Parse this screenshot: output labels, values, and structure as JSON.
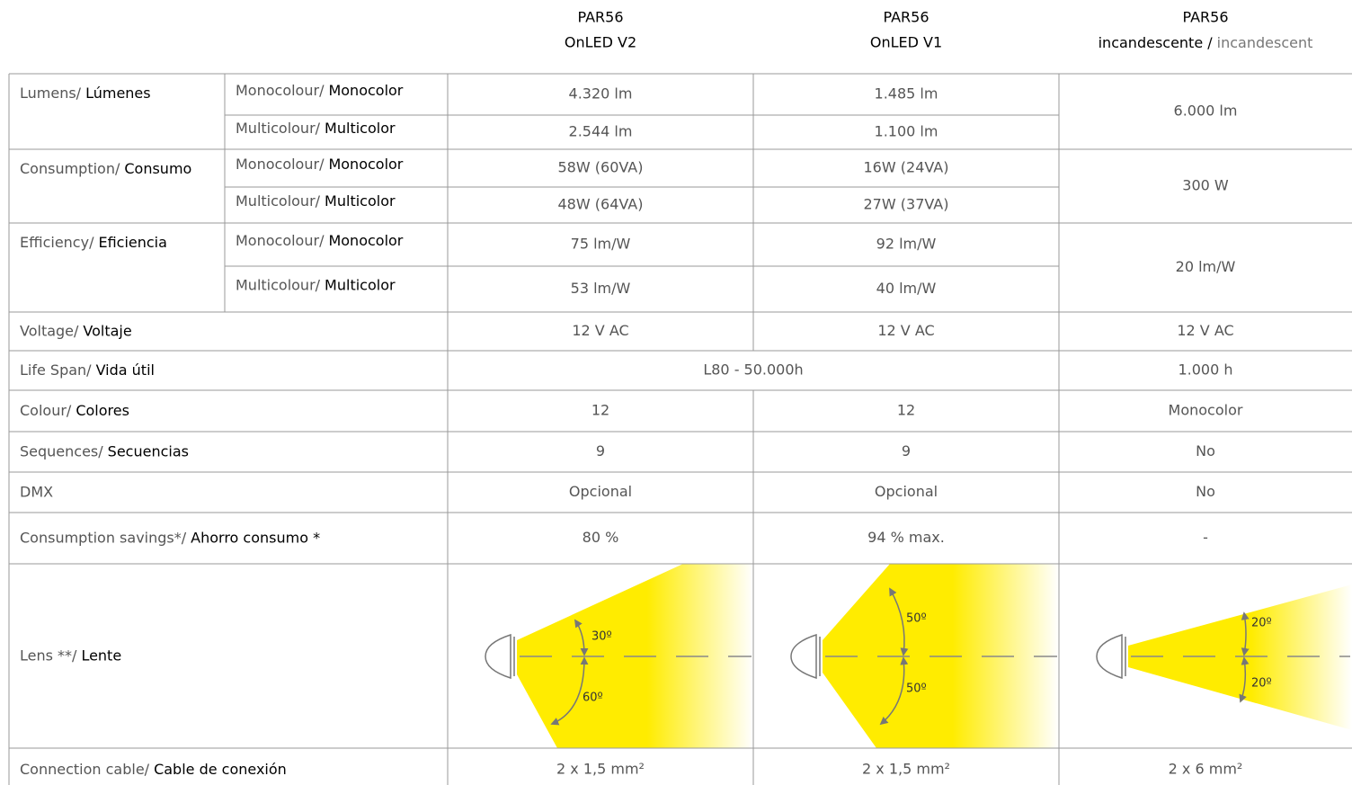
{
  "header": {
    "columns": [
      {
        "line1": "PAR56",
        "line2": "OnLED V2"
      },
      {
        "line1": "PAR56",
        "line2": "OnLED V1"
      },
      {
        "line1": "PAR56",
        "line2_es": "incandescente /",
        "line2_en": "incandescent"
      }
    ]
  },
  "table": {
    "rows": [
      {
        "label_en": "Lumens/",
        "label_es": "Lúmenes",
        "sub": [
          {
            "label_en": "Monocolour/",
            "label_es": "Monocolor",
            "values": [
              "4.320 lm",
              "1.485 lm"
            ]
          },
          {
            "label_en": "Multicolour/",
            "label_es": "Multicolor",
            "values": [
              "2.544 lm",
              "1.100 lm"
            ]
          }
        ],
        "shared": "6.000 lm"
      },
      {
        "label_en": "Consumption/",
        "label_es": "Consumo",
        "sub": [
          {
            "label_en": "Monocolour/",
            "label_es": "Monocolor",
            "values": [
              "58W (60VA)",
              "16W (24VA)"
            ]
          },
          {
            "label_en": "Multicolour/",
            "label_es": "Multicolor",
            "values": [
              "48W (64VA)",
              "27W (37VA)"
            ]
          }
        ],
        "shared": "300 W"
      },
      {
        "label_en": "Efficiency/",
        "label_es": "Eficiencia",
        "sub": [
          {
            "label_en": "Monocolour/",
            "label_es": "Monocolor",
            "values": [
              "75 lm/W",
              "92 lm/W"
            ]
          },
          {
            "label_en": "Multicolour/",
            "label_es": "Multicolor",
            "values": [
              "53 lm/W",
              "40 lm/W"
            ]
          }
        ],
        "shared": "20 lm/W"
      },
      {
        "label_en": "Voltage/",
        "label_es": "Voltaje",
        "values": [
          "12 V AC",
          "12 V AC",
          "12 V AC"
        ]
      },
      {
        "label_en": "Life Span/",
        "label_es": "Vida útil",
        "values": [
          "L80 - 50.000h",
          "1.000 h"
        ]
      },
      {
        "label_en": "Colour/",
        "label_es": "Colores",
        "values": [
          "12",
          "12",
          "Monocolor"
        ]
      },
      {
        "label_en": "Sequences/",
        "label_es": "Secuencias",
        "values": [
          "9",
          "9",
          "No"
        ]
      },
      {
        "label_en": "DMX",
        "values": [
          "Opcional",
          "Opcional",
          "No"
        ]
      },
      {
        "label_en": "Consumption savings*/",
        "label_es": "Ahorro consumo *",
        "values": [
          "80 %",
          "94 % max.",
          "-"
        ]
      },
      {
        "label_en": "Lens **/",
        "label_es": "Lente",
        "angles": [
          [
            "30º",
            "60º"
          ],
          [
            "50º",
            "50º"
          ],
          [
            "20º",
            "20º"
          ]
        ]
      },
      {
        "label_en": "Connection cable/",
        "label_es": "Cable de conexión",
        "values": [
          "2 x 1,5 mm²",
          "2 x 1,5 mm²",
          "2 x 6 mm²"
        ]
      }
    ]
  }
}
